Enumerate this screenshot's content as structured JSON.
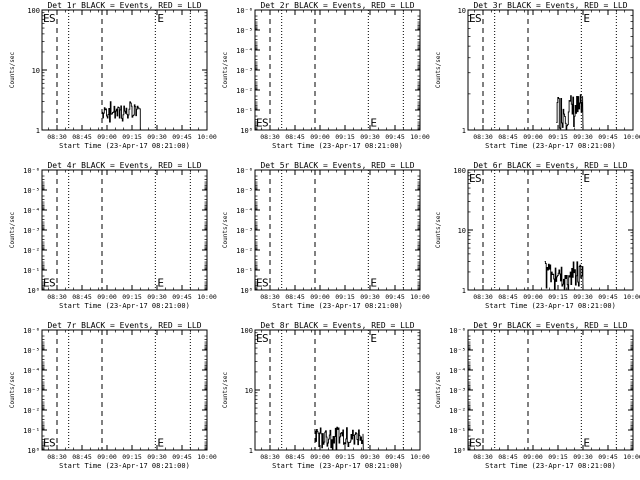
{
  "chart_data": [
    {
      "type": "line",
      "title": "Det 1r BLACK = Events, RED = LLD",
      "xlabel": "Start Time (23-Apr-17 08:21:00)",
      "ylabel": "Counts/sec",
      "yscale": "log",
      "ylim": [
        1,
        100
      ],
      "yticks": [
        {
          "v": 1,
          "label": "1"
        },
        {
          "v": 10,
          "label": "10"
        },
        {
          "v": 100,
          "label": "100"
        }
      ],
      "xticks": [
        "08:30",
        "08:45",
        "09:00",
        "09:15",
        "09:30",
        "09:45",
        "10:00"
      ],
      "xlim_min": [
        21,
        120
      ],
      "markers": {
        "S_min": 30,
        "E_min": 89,
        "label_y_frac": 0.06
      },
      "dashed_min": [
        30,
        57
      ],
      "dotted_min": [
        37,
        89,
        110
      ],
      "series": [
        {
          "band": [
            [
              57,
              80
            ],
            [
              1.6,
              3
            ],
            [
              1.3,
              2.5
            ]
          ]
        }
      ],
      "grid": false,
      "legend": "none"
    },
    {
      "type": "line",
      "title": "Det 2r BLACK = Events, RED = LLD",
      "xlabel": "Start Time (23-Apr-17 08:21:00)",
      "ylabel": "Counts/sec",
      "yscale": "log",
      "ylim": [
        1,
        1e-06
      ],
      "yticks": [
        {
          "v": 1,
          "label": "10⁰"
        },
        {
          "v": 0.1,
          "label": "10⁻¹"
        },
        {
          "v": 0.01,
          "label": "10⁻²"
        },
        {
          "v": 0.001,
          "label": "10⁻³"
        },
        {
          "v": 0.0001,
          "label": "10⁻⁴"
        },
        {
          "v": 1e-05,
          "label": "10⁻⁵"
        },
        {
          "v": 1e-06,
          "label": "10⁻⁶"
        }
      ],
      "xticks": [
        "08:30",
        "08:45",
        "09:00",
        "09:15",
        "09:30",
        "09:45",
        "10:00"
      ],
      "xlim_min": [
        21,
        120
      ],
      "markers": {
        "S_min": 30,
        "E_min": 89,
        "label_y_frac": 0.93
      },
      "dashed_min": [
        30,
        57
      ],
      "dotted_min": [
        37,
        89,
        110
      ],
      "series": [],
      "grid": false,
      "legend": "none"
    },
    {
      "type": "line",
      "title": "Det 3r BLACK = Events, RED = LLD",
      "xlabel": "Start Time (23-Apr-17 08:21:00)",
      "ylabel": "Counts/sec",
      "yscale": "log",
      "ylim": [
        1,
        10
      ],
      "yticks": [
        {
          "v": 1,
          "label": "1"
        },
        {
          "v": 10,
          "label": "10"
        }
      ],
      "xticks": [
        "08:30",
        "08:45",
        "09:00",
        "09:15",
        "09:30",
        "09:45",
        "10:00"
      ],
      "xlim_min": [
        21,
        120
      ],
      "markers": {
        "S_min": 30,
        "E_min": 89,
        "label_y_frac": 0.06
      },
      "dashed_min": [
        30,
        57
      ],
      "dotted_min": [
        37,
        89,
        110
      ],
      "series": [
        {
          "band": [
            [
              74,
              90
            ],
            [
              1,
              2
            ],
            [
              1,
              2
            ]
          ]
        }
      ],
      "grid": false,
      "legend": "none"
    },
    {
      "type": "line",
      "title": "Det 4r BLACK = Events, RED = LLD",
      "xlabel": "Start Time (23-Apr-17 08:21:00)",
      "ylabel": "Counts/sec",
      "yscale": "log",
      "ylim": [
        1,
        1e-06
      ],
      "yticks": [
        {
          "v": 1,
          "label": "10⁰"
        },
        {
          "v": 0.1,
          "label": "10⁻¹"
        },
        {
          "v": 0.01,
          "label": "10⁻²"
        },
        {
          "v": 0.001,
          "label": "10⁻³"
        },
        {
          "v": 0.0001,
          "label": "10⁻⁴"
        },
        {
          "v": 1e-05,
          "label": "10⁻⁵"
        },
        {
          "v": 1e-06,
          "label": "10⁻⁶"
        }
      ],
      "xticks": [
        "08:30",
        "08:45",
        "09:00",
        "09:15",
        "09:30",
        "09:45",
        "10:00"
      ],
      "xlim_min": [
        21,
        120
      ],
      "markers": {
        "S_min": 30,
        "E_min": 89,
        "label_y_frac": 0.93
      },
      "dashed_min": [
        30,
        57
      ],
      "dotted_min": [
        37,
        89,
        110
      ],
      "series": [],
      "grid": false,
      "legend": "none"
    },
    {
      "type": "line",
      "title": "Det 5r BLACK = Events, RED = LLD",
      "xlabel": "Start Time (23-Apr-17 08:21:00)",
      "ylabel": "Counts/sec",
      "yscale": "log",
      "ylim": [
        1,
        1e-06
      ],
      "yticks": [
        {
          "v": 1,
          "label": "10⁰"
        },
        {
          "v": 0.1,
          "label": "10⁻¹"
        },
        {
          "v": 0.01,
          "label": "10⁻²"
        },
        {
          "v": 0.001,
          "label": "10⁻³"
        },
        {
          "v": 0.0001,
          "label": "10⁻⁴"
        },
        {
          "v": 1e-05,
          "label": "10⁻⁵"
        },
        {
          "v": 1e-06,
          "label": "10⁻⁶"
        }
      ],
      "xticks": [
        "08:30",
        "08:45",
        "09:00",
        "09:15",
        "09:30",
        "09:45",
        "10:00"
      ],
      "xlim_min": [
        21,
        120
      ],
      "markers": {
        "S_min": 30,
        "E_min": 89,
        "label_y_frac": 0.93
      },
      "dashed_min": [
        30,
        57
      ],
      "dotted_min": [
        37,
        89,
        110
      ],
      "series": [],
      "grid": false,
      "legend": "none"
    },
    {
      "type": "line",
      "title": "Det 6r BLACK = Events, RED = LLD",
      "xlabel": "Start Time (23-Apr-17 08:21:00)",
      "ylabel": "Counts/sec",
      "yscale": "log",
      "ylim": [
        1,
        100
      ],
      "yticks": [
        {
          "v": 1,
          "label": "1"
        },
        {
          "v": 10,
          "label": "10"
        },
        {
          "v": 100,
          "label": "100"
        }
      ],
      "xticks": [
        "08:30",
        "08:45",
        "09:00",
        "09:15",
        "09:30",
        "09:45",
        "10:00"
      ],
      "xlim_min": [
        21,
        120
      ],
      "markers": {
        "S_min": 30,
        "E_min": 89,
        "label_y_frac": 0.06
      },
      "dashed_min": [
        30,
        57
      ],
      "dotted_min": [
        37,
        89,
        110
      ],
      "series": [
        {
          "band": [
            [
              67,
              90
            ],
            [
              1.6,
              3
            ],
            [
              1,
              2
            ]
          ]
        }
      ],
      "grid": false,
      "legend": "none"
    },
    {
      "type": "line",
      "title": "Det 7r BLACK = Events, RED = LLD",
      "xlabel": "Start Time (23-Apr-17 08:21:00)",
      "ylabel": "Counts/sec",
      "yscale": "log",
      "ylim": [
        1,
        1e-06
      ],
      "yticks": [
        {
          "v": 1,
          "label": "10⁰"
        },
        {
          "v": 0.1,
          "label": "10⁻¹"
        },
        {
          "v": 0.01,
          "label": "10⁻²"
        },
        {
          "v": 0.001,
          "label": "10⁻³"
        },
        {
          "v": 0.0001,
          "label": "10⁻⁴"
        },
        {
          "v": 1e-05,
          "label": "10⁻⁵"
        },
        {
          "v": 1e-06,
          "label": "10⁻⁶"
        }
      ],
      "xticks": [
        "08:30",
        "08:45",
        "09:00",
        "09:15",
        "09:30",
        "09:45",
        "10:00"
      ],
      "xlim_min": [
        21,
        120
      ],
      "markers": {
        "S_min": 30,
        "E_min": 89,
        "label_y_frac": 0.93
      },
      "dashed_min": [
        30,
        57
      ],
      "dotted_min": [
        37,
        89,
        110
      ],
      "series": [],
      "grid": false,
      "legend": "none"
    },
    {
      "type": "line",
      "title": "Det 8r BLACK = Events, RED = LLD",
      "xlabel": "Start Time (23-Apr-17 08:21:00)",
      "ylabel": "Counts/sec",
      "yscale": "log",
      "ylim": [
        1,
        100
      ],
      "yticks": [
        {
          "v": 1,
          "label": "1"
        },
        {
          "v": 10,
          "label": "10"
        },
        {
          "v": 100,
          "label": "100"
        }
      ],
      "xticks": [
        "08:30",
        "08:45",
        "09:00",
        "09:15",
        "09:30",
        "09:45",
        "10:00"
      ],
      "xlim_min": [
        21,
        120
      ],
      "markers": {
        "S_min": 30,
        "E_min": 89,
        "label_y_frac": 0.06
      },
      "dashed_min": [
        30,
        57
      ],
      "dotted_min": [
        37,
        89,
        110
      ],
      "series": [
        {
          "band": [
            [
              57,
              86
            ],
            [
              1.6,
              2.4
            ],
            [
              1,
              2
            ]
          ]
        }
      ],
      "grid": false,
      "legend": "none"
    },
    {
      "type": "line",
      "title": "Det 9r BLACK = Events, RED = LLD",
      "xlabel": "Start Time (23-Apr-17 08:21:00)",
      "ylabel": "Counts/sec",
      "yscale": "log",
      "ylim": [
        1,
        1e-06
      ],
      "yticks": [
        {
          "v": 1,
          "label": "10⁰"
        },
        {
          "v": 0.1,
          "label": "10⁻¹"
        },
        {
          "v": 0.01,
          "label": "10⁻²"
        },
        {
          "v": 0.001,
          "label": "10⁻³"
        },
        {
          "v": 0.0001,
          "label": "10⁻⁴"
        },
        {
          "v": 1e-05,
          "label": "10⁻⁵"
        },
        {
          "v": 1e-06,
          "label": "10⁻⁶"
        }
      ],
      "xticks": [
        "08:30",
        "08:45",
        "09:00",
        "09:15",
        "09:30",
        "09:45",
        "10:00"
      ],
      "xlim_min": [
        21,
        120
      ],
      "markers": {
        "S_min": 30,
        "E_min": 89,
        "label_y_frac": 0.93
      },
      "dashed_min": [
        30,
        57
      ],
      "dotted_min": [
        37,
        89,
        110
      ],
      "series": [],
      "grid": false,
      "legend": "none"
    }
  ]
}
